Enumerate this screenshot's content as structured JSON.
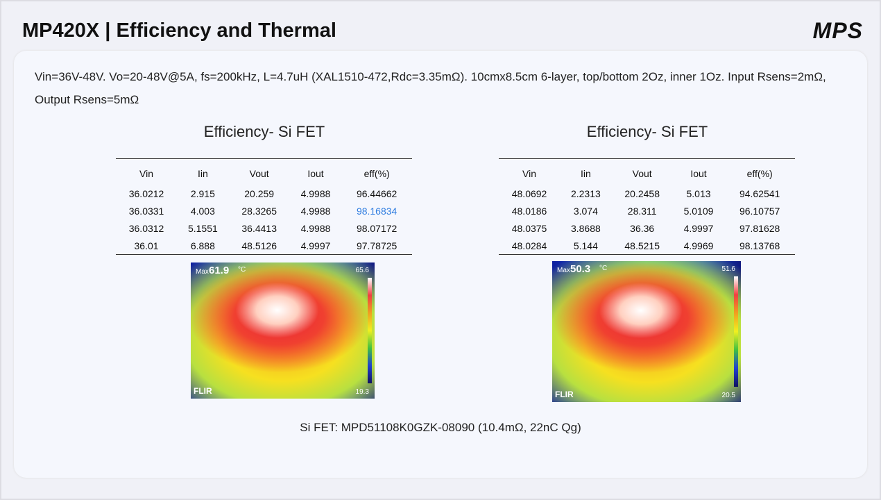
{
  "header": {
    "title": "MP420X | Efficiency and Thermal",
    "logo": "MPS"
  },
  "description": "Vin=36V-48V. Vo=20-48V@5A, fs=200kHz, L=4.7uH (XAL1510-472,Rdc=3.35mΩ). 10cmx8.5cm 6-layer, top/bottom 2Oz, inner 1Oz. Input Rsens=2mΩ, Output Rsens=5mΩ",
  "panels": [
    {
      "title": "Efficiency- Si FET",
      "table": {
        "columns": [
          "Vin",
          "Iin",
          "Vout",
          "Iout",
          "eff(%)"
        ],
        "rows": [
          [
            "36.0212",
            "2.915",
            "20.259",
            "4.9988",
            "96.44662"
          ],
          [
            "36.0331",
            "4.003",
            "28.3265",
            "4.9988",
            "98.16834"
          ],
          [
            "36.0312",
            "5.1551",
            "36.4413",
            "4.9988",
            "98.07172"
          ],
          [
            "36.01",
            "6.888",
            "48.5126",
            "4.9997",
            "97.78725"
          ]
        ]
      },
      "thermal": {
        "max_label": "Max",
        "max": "61.9",
        "unit": "°C",
        "scale_high": "65.6",
        "scale_low": "19.3",
        "brand": "FLIR"
      }
    },
    {
      "title": "Efficiency- Si FET",
      "table": {
        "columns": [
          "Vin",
          "Iin",
          "Vout",
          "Iout",
          "eff(%)"
        ],
        "rows": [
          [
            "48.0692",
            "2.2313",
            "20.2458",
            "5.013",
            "94.62541"
          ],
          [
            "48.0186",
            "3.074",
            "28.311",
            "5.0109",
            "96.10757"
          ],
          [
            "48.0375",
            "3.8688",
            "36.36",
            "4.9997",
            "97.81628"
          ],
          [
            "48.0284",
            "5.144",
            "48.5215",
            "4.9969",
            "98.13768"
          ]
        ]
      },
      "thermal": {
        "max_label": "Max",
        "max": "50.3",
        "unit": "°C",
        "scale_high": "51.6",
        "scale_low": "20.5",
        "brand": "FLIR"
      }
    }
  ],
  "caption": "Si FET: MPD51108K0GZK-08090 (10.4mΩ, 22nC Qg)"
}
